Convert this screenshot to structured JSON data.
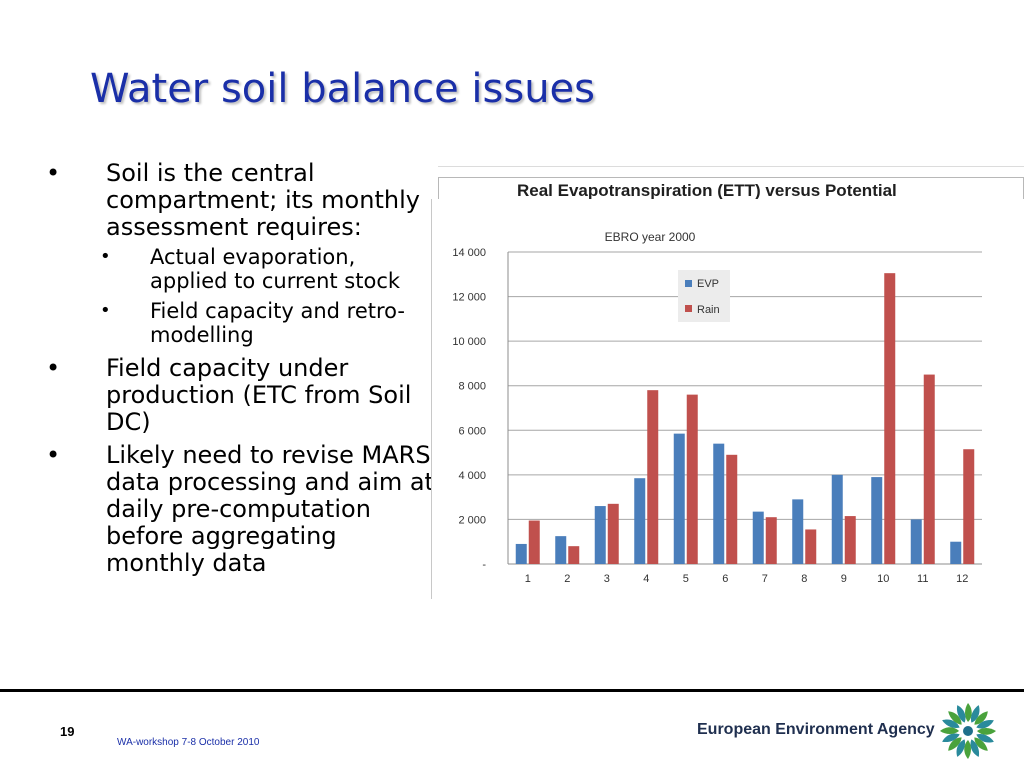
{
  "slide": {
    "title": "Water soil balance issues",
    "bullets": [
      {
        "text": "Soil is the central compartment; its monthly assessment requires:",
        "sub": [
          "Actual evaporation, applied to current stock",
          "Field capacity and retro-modelling"
        ]
      },
      {
        "text": "Field capacity under production (ETC from Soil DC)"
      },
      {
        "text": "Likely need to revise MARS data processing and aim at daily pre-computation before aggregating monthly data"
      }
    ],
    "bullet_glyph": "•"
  },
  "chart_header": "Real Evapotranspiration (ETT) versus Potential",
  "footer": {
    "page_number": "19",
    "event": "WA-workshop 7-8 October 2010",
    "agency": "European Environment Agency"
  },
  "icons": {
    "logo": "eea-sunflower-logo"
  },
  "colors": {
    "title": "#1a2fa8",
    "evp": "#4a7ebb",
    "rain": "#c0504d",
    "grid": "#8c8c8c"
  },
  "chart_data": {
    "type": "bar",
    "title": "EBRO year 2000",
    "categories": [
      "1",
      "2",
      "3",
      "4",
      "5",
      "6",
      "7",
      "8",
      "9",
      "10",
      "11",
      "12"
    ],
    "series": [
      {
        "name": "EVP",
        "values": [
          900,
          1250,
          2600,
          3850,
          5850,
          5400,
          2350,
          2900,
          4000,
          3900,
          2000,
          1000
        ]
      },
      {
        "name": "Rain",
        "values": [
          1950,
          800,
          2700,
          7800,
          7600,
          4900,
          2100,
          1550,
          2150,
          13050,
          8500,
          5150
        ]
      }
    ],
    "ylim": [
      0,
      14000
    ],
    "yticks": [
      0,
      2000,
      4000,
      6000,
      8000,
      10000,
      12000,
      14000
    ],
    "ytick_labels": [
      "-",
      "2 000",
      "4 000",
      "6 000",
      "8 000",
      "10 000",
      "12 000",
      "14 000"
    ],
    "grid": true,
    "legend": "top-center"
  }
}
